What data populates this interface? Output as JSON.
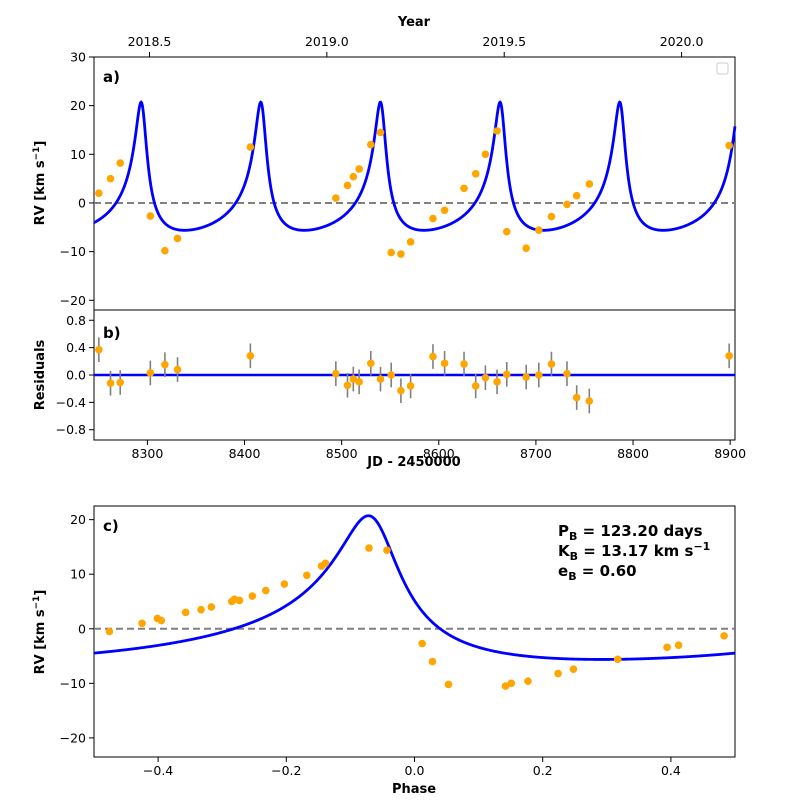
{
  "chart_data": [
    {
      "panel": "a",
      "type": "line+scatter",
      "panel_label": "a)",
      "ylabel_main": "RV [km s",
      "ylabel_sup": "−1",
      "ylabel_end": "]",
      "top_xlabel": "Year",
      "top_ticks": [
        "2018.5",
        "2019.0",
        "2019.5",
        "2020.0"
      ],
      "top_tick_values": [
        2018.5,
        2019.0,
        2019.5,
        2020.0
      ],
      "xlim": [
        8245,
        8905
      ],
      "ylim": [
        -22,
        30
      ],
      "yticks": [
        -20,
        -10,
        0,
        10,
        20,
        30
      ],
      "reference_line": 0,
      "model": {
        "period": 123.2,
        "K": 13.17,
        "e": 0.6,
        "jd_of_peak": 8293.5,
        "phase_shift": 0.15,
        "color": "#0000ff"
      },
      "points": {
        "color": "#ffa500",
        "x": [
          8250,
          8262,
          8272,
          8303,
          8318,
          8331,
          8406,
          8494,
          8506,
          8512,
          8518,
          8530,
          8540,
          8551,
          8561,
          8571,
          8594,
          8606,
          8626,
          8638,
          8648,
          8660,
          8670,
          8690,
          8703,
          8716,
          8732,
          8742,
          8755,
          8899
        ],
        "y": [
          2.0,
          5.0,
          8.2,
          -2.7,
          -9.8,
          -7.3,
          11.5,
          1.0,
          3.6,
          5.4,
          7.0,
          12.0,
          14.5,
          -10.2,
          -10.5,
          -8.0,
          -3.2,
          -1.5,
          3.0,
          6.0,
          10.0,
          14.8,
          -5.9,
          -9.3,
          -5.6,
          -2.8,
          -0.3,
          1.5,
          3.9,
          11.8
        ]
      }
    },
    {
      "panel": "b",
      "type": "scatter+errorbar",
      "panel_label": "b)",
      "ylabel": "Residuals",
      "xlabel": "JD - 2450000",
      "xlim": [
        8245,
        8905
      ],
      "xticks": [
        8300,
        8400,
        8500,
        8600,
        8700,
        8800,
        8900
      ],
      "ylim": [
        -0.95,
        0.95
      ],
      "yticks": [
        -0.8,
        -0.4,
        0.0,
        0.4,
        0.8
      ],
      "ytick_labels": [
        "−0.8",
        "−0.4",
        "0.0",
        "0.4",
        "0.8"
      ],
      "points": {
        "color": "#ffa500",
        "errorbar_color": "#808080",
        "x": [
          8250,
          8262,
          8272,
          8303,
          8318,
          8331,
          8406,
          8494,
          8506,
          8512,
          8518,
          8530,
          8540,
          8551,
          8561,
          8571,
          8594,
          8606,
          8626,
          8638,
          8648,
          8660,
          8670,
          8690,
          8703,
          8716,
          8732,
          8742,
          8755,
          8899
        ],
        "y": [
          0.37,
          -0.12,
          -0.11,
          0.03,
          0.15,
          0.08,
          0.28,
          0.02,
          -0.15,
          -0.06,
          -0.1,
          0.17,
          -0.06,
          0.0,
          -0.23,
          -0.16,
          0.27,
          0.17,
          0.16,
          -0.16,
          -0.04,
          -0.1,
          0.01,
          -0.03,
          0.0,
          0.16,
          0.02,
          -0.33,
          -0.38,
          0.28
        ],
        "err": 0.18
      }
    },
    {
      "panel": "c",
      "type": "line+scatter",
      "panel_label": "c)",
      "ylabel_main": "RV [km s",
      "ylabel_sup": "−1",
      "ylabel_end": "]",
      "xlabel": "Phase",
      "xlim": [
        -0.5,
        0.5
      ],
      "xticks": [
        -0.4,
        -0.2,
        0.0,
        0.2,
        0.4
      ],
      "xtick_labels": [
        "−0.4",
        "−0.2",
        "0.0",
        "0.2",
        "0.4"
      ],
      "ylim": [
        -23.5,
        22.5
      ],
      "yticks": [
        -20,
        -10,
        0,
        10,
        20
      ],
      "reference_line": 0,
      "model": {
        "period": 123.2,
        "K": 13.17,
        "e": 0.6,
        "phase_shift": 0.15,
        "color": "#0000ff"
      },
      "points": {
        "color": "#ffa500",
        "x": [
          -0.476,
          -0.425,
          -0.401,
          -0.395,
          -0.357,
          -0.333,
          -0.317,
          -0.285,
          -0.281,
          -0.273,
          -0.253,
          -0.232,
          -0.203,
          -0.168,
          -0.145,
          -0.139,
          -0.071,
          -0.043,
          0.012,
          0.028,
          0.053,
          0.142,
          0.151,
          0.177,
          0.224,
          0.248,
          0.317,
          0.394,
          0.412,
          0.483
        ],
        "y": [
          -0.5,
          1.0,
          1.9,
          1.5,
          3.0,
          3.5,
          4.0,
          5.0,
          5.4,
          5.2,
          6.0,
          7.0,
          8.2,
          9.8,
          11.5,
          12.0,
          14.8,
          14.4,
          -2.7,
          -6.0,
          -10.2,
          -10.5,
          -10.0,
          -9.6,
          -8.2,
          -7.4,
          -5.6,
          -3.4,
          -3.0,
          -1.3
        ]
      }
    }
  ],
  "annotation": {
    "lines": [
      {
        "main": "P",
        "sub": "B",
        "rest": " = 123.20 days"
      },
      {
        "main": "K",
        "sub": "B",
        "rest": " = 13.17 km s",
        "sup": "−1"
      },
      {
        "main": "e",
        "sub": "B",
        "rest": " = 0.60"
      }
    ]
  },
  "panel_a_ticks": {
    "minus_labels": [
      "−20",
      "−10",
      "0",
      "10",
      "20",
      "30"
    ]
  },
  "panel_b_xtick_labels": [
    "8300",
    "8400",
    "8500",
    "8600",
    "8700",
    "8800",
    "8900"
  ],
  "panel_c_ytick_labels": [
    "−20",
    "−10",
    "0",
    "10",
    "20"
  ]
}
